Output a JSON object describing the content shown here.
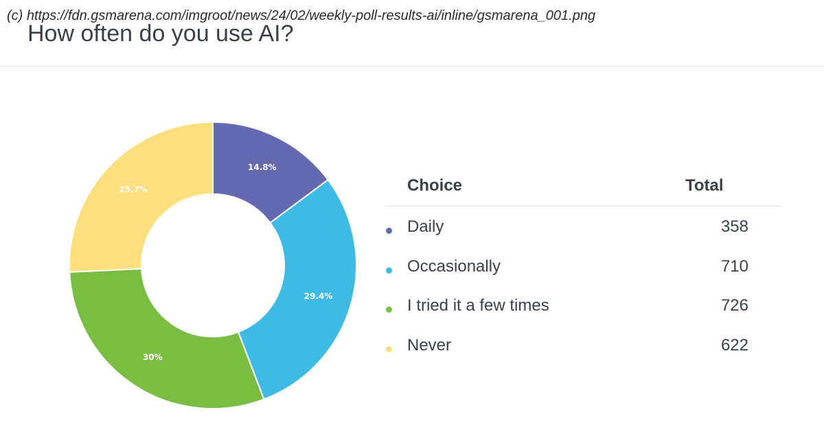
{
  "watermark": "(c) https://fdn.gsmarena.com/imgroot/news/24/02/weekly-poll-results-ai/inline/gsmarena_001.png",
  "title": "How often do you use AI?",
  "legend": {
    "choice_header": "Choice",
    "total_header": "Total"
  },
  "chart_data": {
    "type": "pie",
    "style": "donut",
    "title": "How often do you use AI?",
    "categories": [
      "Daily",
      "Occasionally",
      "I tried it a few times",
      "Never"
    ],
    "values": [
      358,
      710,
      726,
      622
    ],
    "percent_labels": [
      "14.8%",
      "29.4%",
      "30%",
      "25.7%"
    ],
    "colors": [
      "#6469b0",
      "#3dbbe5",
      "#79be42",
      "#fedf7d"
    ],
    "legend": "right"
  }
}
